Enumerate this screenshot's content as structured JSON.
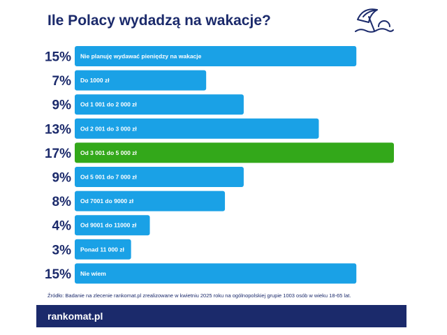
{
  "title": "Ile Polacy wydadzą na wakacje?",
  "source": "Źródło: Badanie na zlecenie rankomat.pl zrealizowane w kwietniu 2025 roku na ogólnopolskiej grupie 1003 osób w wieku 18-65 lat.",
  "brand": "rankomat.pl",
  "icon": "umbrella-icon",
  "colors": {
    "bar": "#1aa1e6",
    "highlight": "#33a81a",
    "navy": "#1b2a6b"
  },
  "chart_data": {
    "type": "bar",
    "orientation": "horizontal",
    "title": "Ile Polacy wydadzą na wakacje?",
    "categories": [
      "Nie planuję wydawać pieniędzy na wakacje",
      "Do 1000 zł",
      "Od 1 001 do 2 000 zł",
      "Od 2 001 do 3 000 zł",
      "Od 3 001 do 5 000 zł",
      "Od 5 001 do 7 000 zł",
      "Od 7001 do 9000 zł",
      "Od 9001 do 11000 zł",
      "Ponad 11 000 zł",
      "Nie wiem"
    ],
    "values": [
      15,
      7,
      9,
      13,
      17,
      9,
      8,
      4,
      3,
      15
    ],
    "value_labels": [
      "15%",
      "7%",
      "9%",
      "13%",
      "17%",
      "9%",
      "8%",
      "4%",
      "3%",
      "15%"
    ],
    "highlight_index": 4,
    "xlim": [
      0,
      17
    ],
    "unit": "%"
  }
}
